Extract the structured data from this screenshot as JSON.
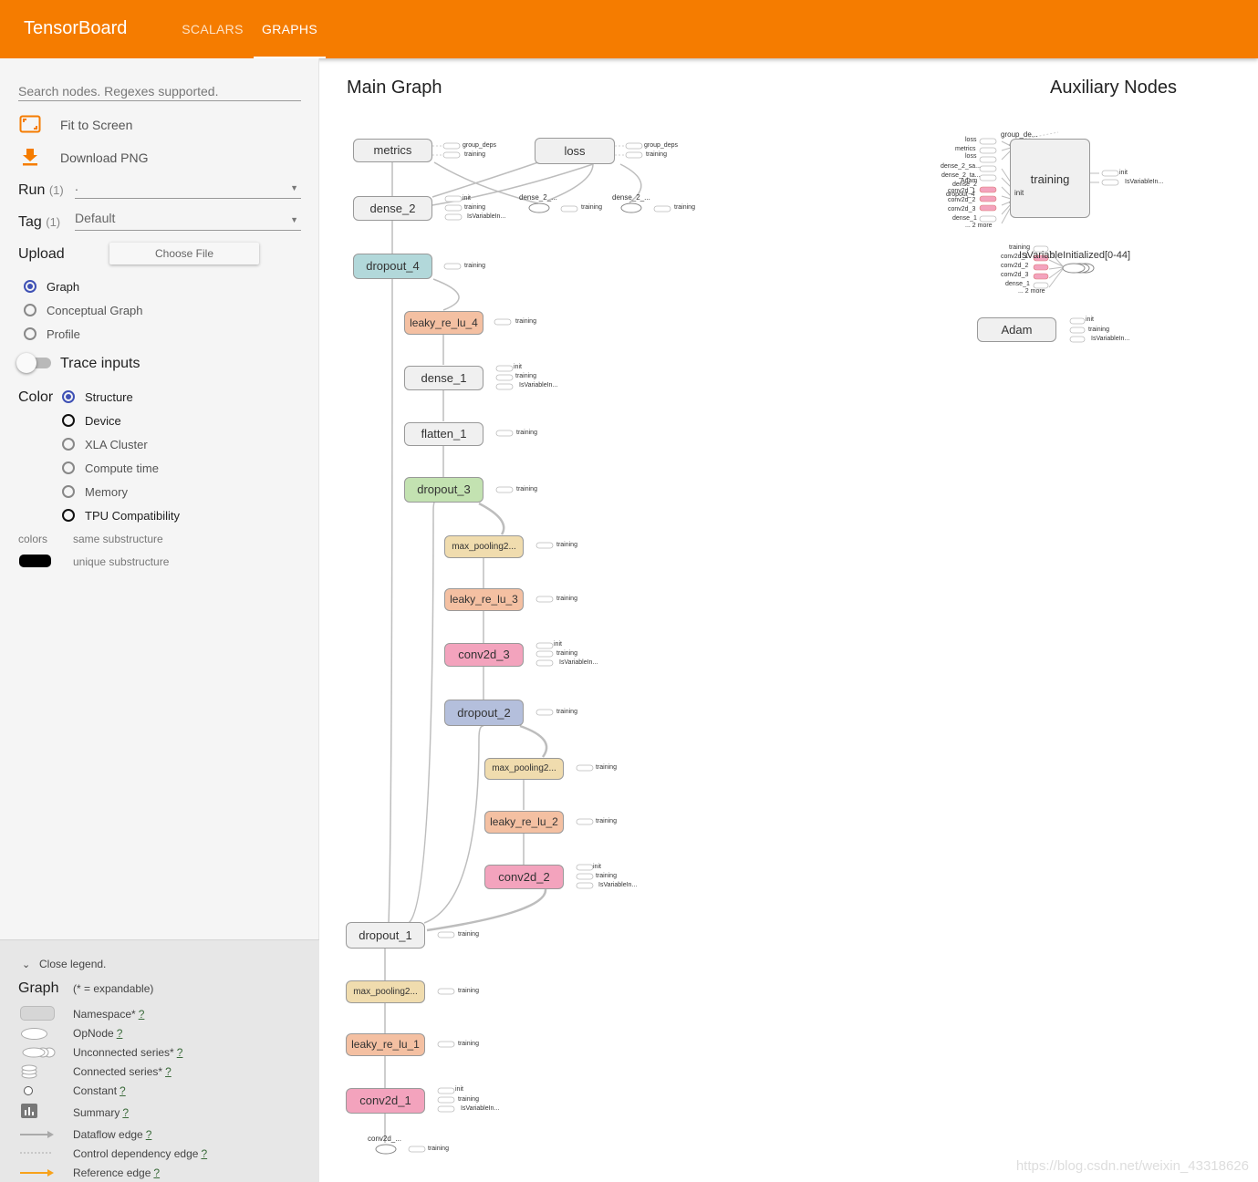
{
  "app": {
    "title": "TensorBoard",
    "tabs": [
      {
        "label": "SCALARS"
      },
      {
        "label": "GRAPHS"
      }
    ]
  },
  "sidebar": {
    "search_placeholder": "Search nodes. Regexes supported.",
    "fit_label": "Fit to Screen",
    "download_label": "Download PNG",
    "run": {
      "label": "Run",
      "count": "(1)",
      "value": "."
    },
    "tag": {
      "label": "Tag",
      "count": "(1)",
      "value": "Default"
    },
    "upload": {
      "label": "Upload",
      "button": "Choose File"
    },
    "graph_types": [
      {
        "label": "Graph",
        "selected": true
      },
      {
        "label": "Conceptual Graph",
        "selected": false
      },
      {
        "label": "Profile",
        "selected": false
      }
    ],
    "trace_label": "Trace inputs",
    "color": {
      "label": "Color",
      "options": [
        {
          "label": "Structure",
          "selected": true
        },
        {
          "label": "Device"
        },
        {
          "label": "XLA Cluster"
        },
        {
          "label": "Compute time"
        },
        {
          "label": "Memory"
        },
        {
          "label": "TPU Compatibility"
        }
      ]
    },
    "colors_label": "colors",
    "same_sub": "same substructure",
    "unique_sub": "unique substructure"
  },
  "legend": {
    "close": "Close legend.",
    "title": "Graph",
    "subtitle": "(* = expandable)",
    "items": [
      "Namespace*",
      "OpNode",
      "Unconnected series*",
      "Connected series*",
      "Constant",
      "Summary",
      "Dataflow edge",
      "Control dependency edge",
      "Reference edge"
    ],
    "help": "?"
  },
  "graph": {
    "main_title": "Main Graph",
    "aux_title": "Auxiliary Nodes",
    "nodes": {
      "metrics": "metrics",
      "loss": "loss",
      "dense_2": "dense_2",
      "dropout_4": "dropout_4",
      "leaky_4": "leaky_re_lu_4",
      "dense_1": "dense_1",
      "flatten_1": "flatten_1",
      "dropout_3": "dropout_3",
      "maxpool_3": "max_pooling2...",
      "leaky_3": "leaky_re_lu_3",
      "conv2d_3": "conv2d_3",
      "dropout_2": "dropout_2",
      "maxpool_2": "max_pooling2...",
      "leaky_2": "leaky_re_lu_2",
      "conv2d_2": "conv2d_2",
      "dropout_1": "dropout_1",
      "maxpool_1": "max_pooling2...",
      "leaky_1": "leaky_re_lu_1",
      "conv2d_1": "conv2d_1",
      "training": "training",
      "adam": "Adam",
      "isvar": "IsVariableInitialized[0-44]"
    },
    "small_labels": {
      "group_deps": "group_deps",
      "training": "training",
      "init": "init",
      "isvar": "IsVariableIn...",
      "dense_2_a": "dense_2_...",
      "dense_2_b": "dense_2_...",
      "conv2d_": "conv2d_...",
      "group_de": "group_de...",
      "more2": "... 2 more",
      "loss": "loss",
      "metrics": "metrics",
      "dense_2_sa": "dense_2_sa...",
      "dense_2_ta": "dense_2_ta...",
      "adam_s": "Adam",
      "dense_2": "dense_2",
      "conv2d_1": "conv2d_1",
      "dropout_4": "dropout_4",
      "conv2d_2": "conv2d_2",
      "conv2d_3": "conv2d_3",
      "dense_1": "dense_1"
    }
  },
  "colors": {
    "header": "#f57c00",
    "accent": "#3f51b5",
    "grey": "#f0f0f0",
    "teal": "#b2d8da",
    "salmon": "#f4c0a2",
    "green": "#c3e2b1",
    "tan": "#f0dcae",
    "pink": "#f3a3bd",
    "blue": "#b4bfdc"
  },
  "watermark": "https://blog.csdn.net/weixin_43318626"
}
